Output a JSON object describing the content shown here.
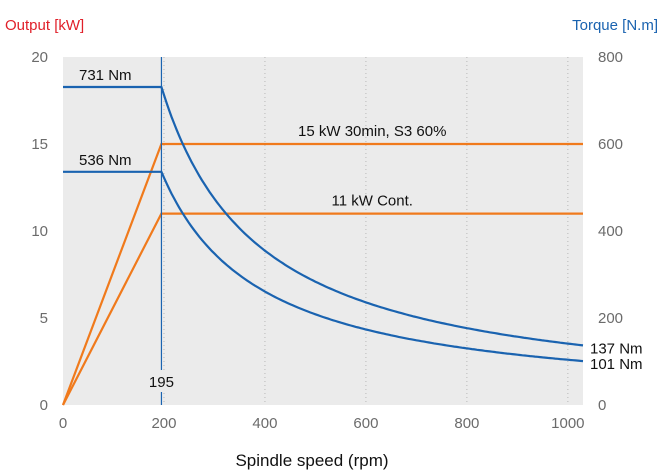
{
  "chart_data": {
    "type": "line",
    "left_axis": {
      "label": "Output [kW]",
      "color": "#e0202a",
      "ticks": [
        0,
        5,
        10,
        15,
        20
      ],
      "range": [
        0,
        20
      ]
    },
    "right_axis": {
      "label": "Torque [N.m]",
      "color": "#1a63b0",
      "ticks": [
        0,
        200,
        400,
        600,
        800
      ],
      "range": [
        0,
        800
      ]
    },
    "x_axis": {
      "label": "Spindle speed (rpm)",
      "ticks": [
        0,
        200,
        400,
        600,
        800,
        1000
      ],
      "range": [
        0,
        1030
      ]
    },
    "grid": "vertical dotted",
    "plot_background": "#ebebeb",
    "colors": {
      "power": "#f07a1c",
      "torque": "#1a63b0",
      "marker": "#1a63b0"
    },
    "marker_line": {
      "x": 195,
      "label": "195"
    },
    "series": [
      {
        "name": "15  kW 30min, S3 60%",
        "axis": "left",
        "kind": "power",
        "points": [
          [
            0,
            0
          ],
          [
            195,
            15
          ],
          [
            1030,
            15
          ]
        ]
      },
      {
        "name": "11 kW Cont.",
        "axis": "left",
        "kind": "power",
        "points": [
          [
            0,
            0
          ],
          [
            195,
            11
          ],
          [
            1030,
            11
          ]
        ]
      },
      {
        "axis": "right",
        "kind": "torque",
        "constant_value": 731,
        "base_speed": 195,
        "x_end": 1030,
        "end_value": 137
      },
      {
        "axis": "right",
        "kind": "torque",
        "constant_value": 536,
        "base_speed": 195,
        "x_end": 1030,
        "end_value": 101
      }
    ],
    "annotations": [
      {
        "text": "731 Nm",
        "anchor": "left-top",
        "series": 2
      },
      {
        "text": "536 Nm",
        "anchor": "left-top",
        "series": 3
      },
      {
        "text": "15  kW 30min, S3 60%",
        "anchor": "above-line",
        "series": 0
      },
      {
        "text": "11 kW Cont.",
        "anchor": "above-line",
        "series": 1
      },
      {
        "text": "137 Nm",
        "anchor": "right-end",
        "series": 2
      },
      {
        "text": "101 Nm",
        "anchor": "right-end",
        "series": 3
      }
    ]
  }
}
